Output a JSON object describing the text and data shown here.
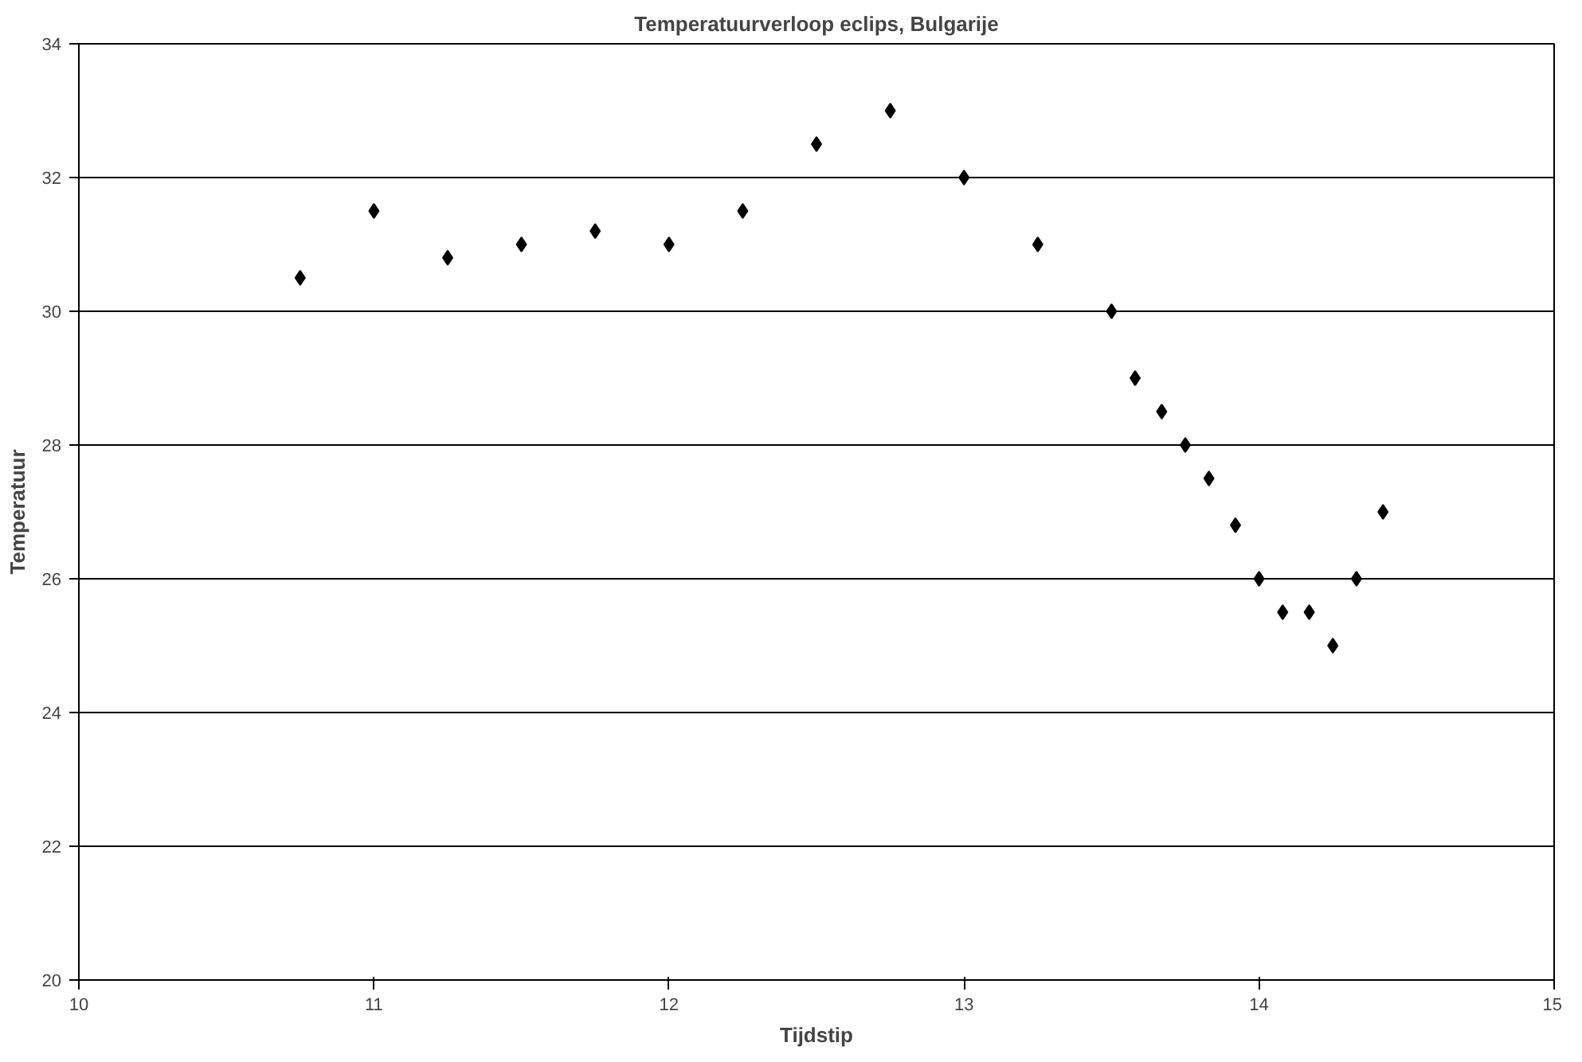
{
  "chart_data": {
    "type": "scatter",
    "title": "Temperatuurverloop eclips, Bulgarije",
    "xlabel": "Tijdstip",
    "ylabel": "Temperatuur",
    "x": [
      10.75,
      11,
      11.25,
      11.5,
      11.75,
      12,
      12.25,
      12.5,
      12.75,
      13,
      13.25,
      13.5,
      13.58,
      13.67,
      13.75,
      13.83,
      13.92,
      14,
      14.08,
      14.17,
      14.25,
      14.33,
      14.42
    ],
    "series": [
      {
        "color": "#000000",
        "values": [
          30.5,
          31.5,
          30.8,
          31,
          31.2,
          31,
          31.5,
          32.5,
          33,
          32,
          31,
          30,
          29,
          28.5,
          28,
          27.5,
          26.8,
          26,
          25.5,
          25.5,
          25,
          26,
          27
        ]
      }
    ],
    "xlim": [
      10,
      15
    ],
    "xticks": [
      10,
      11,
      12,
      13,
      14,
      15
    ],
    "ylim": [
      20,
      34
    ],
    "yticks": [
      20,
      22,
      24,
      26,
      28,
      30,
      32,
      34
    ],
    "grid": "y",
    "marker": "diamond"
  }
}
